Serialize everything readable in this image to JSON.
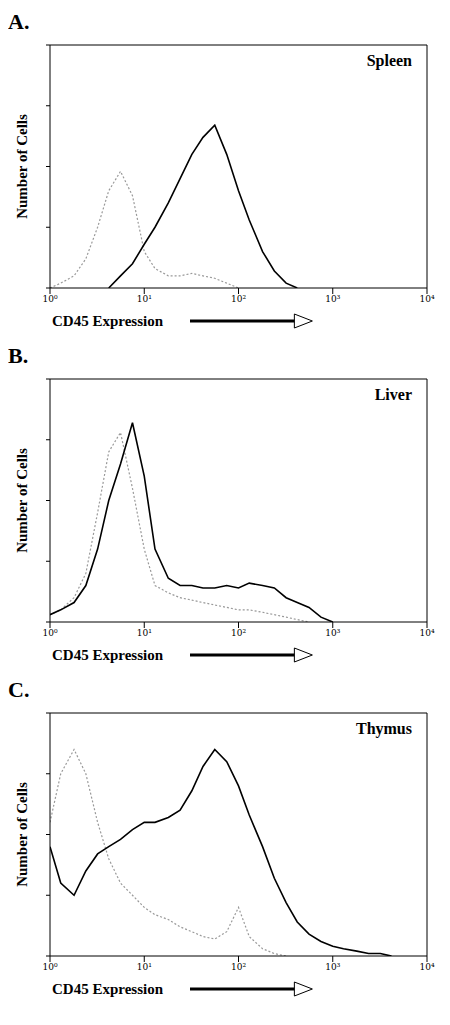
{
  "chart_data": [
    {
      "type": "line",
      "title": "Spleen",
      "annotations": [
        "A."
      ],
      "x_label": "CD45 Expression",
      "y_label": "Number of Cells",
      "log": "x",
      "tick_labels": "x",
      "xlim": [
        1,
        10000
      ],
      "xticks": [
        {
          "value": 1,
          "label": "10⁰"
        },
        {
          "value": 10,
          "label": "10¹"
        },
        {
          "value": 100,
          "label": "10²"
        },
        {
          "value": 1000,
          "label": "10³"
        },
        {
          "value": 10000,
          "label": "10⁴"
        }
      ],
      "ylim": [
        0,
        100
      ],
      "yticks": [
        0,
        25,
        50,
        75,
        100
      ],
      "x": [
        1,
        1.3,
        1.8,
        2.4,
        3.2,
        4.2,
        5.6,
        7.5,
        10,
        13,
        18,
        24,
        32,
        42,
        56,
        75,
        100,
        130,
        180,
        240,
        320,
        420,
        560,
        750,
        1000
      ],
      "series": [
        {
          "color": "#999999",
          "line_style": "dotted",
          "values": [
            0,
            2,
            5,
            12,
            25,
            40,
            48,
            38,
            15,
            8,
            5,
            5,
            6,
            5,
            4,
            2,
            0,
            null,
            null,
            null,
            null,
            null,
            null,
            null,
            null
          ]
        },
        {
          "color": "#000000",
          "line_style": "solid",
          "values": [
            null,
            null,
            null,
            null,
            null,
            0,
            5,
            10,
            18,
            25,
            35,
            45,
            55,
            62,
            67,
            55,
            40,
            28,
            15,
            7,
            2,
            0,
            null,
            null,
            null
          ]
        }
      ]
    },
    {
      "type": "line",
      "title": "Liver",
      "annotations": [
        "B."
      ],
      "x_label": "CD45 Expression",
      "y_label": "Number of Cells",
      "log": "x",
      "tick_labels": "x",
      "xlim": [
        1,
        10000
      ],
      "xticks": [
        {
          "value": 1,
          "label": "10⁰"
        },
        {
          "value": 10,
          "label": "10¹"
        },
        {
          "value": 100,
          "label": "10²"
        },
        {
          "value": 1000,
          "label": "10³"
        },
        {
          "value": 10000,
          "label": "10⁴"
        }
      ],
      "ylim": [
        0,
        100
      ],
      "yticks": [
        0,
        25,
        50,
        75,
        100
      ],
      "x": [
        1,
        1.3,
        1.8,
        2.4,
        3.2,
        4.2,
        5.6,
        7.5,
        10,
        13,
        18,
        24,
        32,
        42,
        56,
        75,
        100,
        130,
        180,
        240,
        320,
        420,
        560,
        750,
        1000
      ],
      "series": [
        {
          "color": "#999999",
          "line_style": "dotted",
          "values": [
            3,
            5,
            10,
            20,
            45,
            70,
            78,
            55,
            30,
            15,
            12,
            10,
            9,
            8,
            7,
            6,
            5,
            5,
            4,
            3,
            2,
            1,
            0,
            null,
            null
          ]
        },
        {
          "color": "#000000",
          "line_style": "solid",
          "values": [
            3,
            5,
            8,
            15,
            30,
            50,
            65,
            82,
            60,
            30,
            18,
            15,
            15,
            14,
            14,
            15,
            14,
            16,
            15,
            14,
            10,
            8,
            6,
            2,
            0
          ]
        }
      ]
    },
    {
      "type": "line",
      "title": "Thymus",
      "annotations": [
        "C."
      ],
      "x_label": "CD45 Expression",
      "y_label": "Number of Cells",
      "log": "x",
      "tick_labels": "x",
      "xlim": [
        1,
        10000
      ],
      "xticks": [
        {
          "value": 1,
          "label": "10⁰"
        },
        {
          "value": 10,
          "label": "10¹"
        },
        {
          "value": 100,
          "label": "10²"
        },
        {
          "value": 1000,
          "label": "10³"
        },
        {
          "value": 10000,
          "label": "10⁴"
        }
      ],
      "ylim": [
        0,
        100
      ],
      "yticks": [
        0,
        25,
        50,
        75,
        100
      ],
      "x": [
        1,
        1.3,
        1.8,
        2.4,
        3.2,
        4.2,
        5.6,
        7.5,
        10,
        13,
        18,
        24,
        32,
        42,
        56,
        75,
        100,
        130,
        180,
        240,
        320,
        420,
        560,
        750,
        1000,
        1300,
        1800,
        2400,
        3200,
        4200
      ],
      "series": [
        {
          "color": "#999999",
          "line_style": "dotted",
          "values": [
            55,
            75,
            85,
            75,
            55,
            40,
            30,
            25,
            20,
            17,
            15,
            12,
            10,
            8,
            7,
            10,
            20,
            8,
            3,
            1,
            0,
            null,
            null,
            null,
            null,
            null,
            null,
            null,
            null,
            null
          ]
        },
        {
          "color": "#000000",
          "line_style": "solid",
          "values": [
            45,
            30,
            25,
            35,
            42,
            45,
            48,
            52,
            55,
            55,
            57,
            60,
            68,
            78,
            85,
            80,
            70,
            58,
            45,
            32,
            22,
            14,
            9,
            6,
            4,
            3,
            2,
            1,
            1,
            0
          ]
        }
      ]
    }
  ]
}
